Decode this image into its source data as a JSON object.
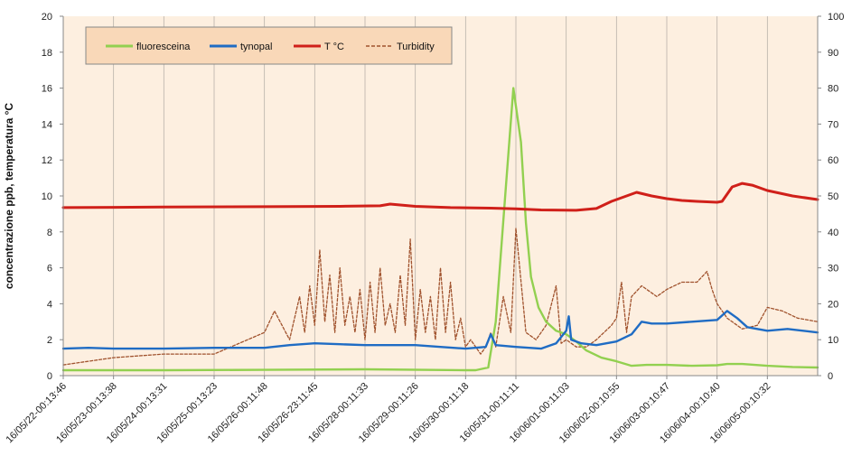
{
  "chart_data": {
    "type": "line",
    "title": "",
    "xlabel": "",
    "ylabel": "concentrazione ppb, temperatura °C",
    "y2label": "",
    "ylim": [
      0,
      20
    ],
    "y2lim": [
      0,
      100
    ],
    "xlim": [
      0,
      15
    ],
    "yticks": [
      0,
      2,
      4,
      6,
      8,
      10,
      12,
      14,
      16,
      18,
      20
    ],
    "y2ticks": [
      0,
      10,
      20,
      30,
      40,
      50,
      60,
      70,
      80,
      90,
      100
    ],
    "grid": "vertical",
    "legend_position": "top-left",
    "categories": [
      "16/05/22-00:13:46",
      "16/05/23-00:13:38",
      "16/05/24-00:13:31",
      "16/05/25-00:13:23",
      "16/05/26-00:11:48",
      "16/05/26-23:11:45",
      "16/05/28-00:11:33",
      "16/05/29-00:11:26",
      "16/05/30-00:11:18",
      "16/05/31-00:11:11",
      "16/06/01-00:11:03",
      "16/06/02-00:10:55",
      "16/06/03-00:10:47",
      "16/06/04-00:10:40",
      "16/06/05-00:10:32"
    ],
    "series": [
      {
        "name": "fluoresceina",
        "axis": "left",
        "color": "#92D050",
        "style": "solid",
        "x": [
          0,
          2,
          4,
          6,
          8,
          8.2,
          8.45,
          8.6,
          8.8,
          8.95,
          9.1,
          9.2,
          9.3,
          9.45,
          9.6,
          9.8,
          10.0,
          10.2,
          10.4,
          10.7,
          11.0,
          11.3,
          11.6,
          12.0,
          12.5,
          13.0,
          13.2,
          13.5,
          14.0,
          14.5,
          15.0
        ],
        "values": [
          0.3,
          0.3,
          0.32,
          0.35,
          0.3,
          0.3,
          0.45,
          3.0,
          10.5,
          16.0,
          13.0,
          8.5,
          5.5,
          3.8,
          3.0,
          2.5,
          2.3,
          1.9,
          1.4,
          1.0,
          0.8,
          0.55,
          0.6,
          0.6,
          0.55,
          0.58,
          0.65,
          0.65,
          0.55,
          0.48,
          0.45
        ]
      },
      {
        "name": "tynopal",
        "axis": "left",
        "color": "#1F6CC4",
        "style": "solid",
        "x": [
          0,
          0.5,
          1,
          2,
          3,
          4,
          4.5,
          5,
          5.5,
          6,
          7,
          7.5,
          8,
          8.4,
          8.5,
          8.6,
          9,
          9.5,
          9.8,
          10.0,
          10.05,
          10.1,
          10.3,
          10.6,
          11,
          11.3,
          11.5,
          11.7,
          12,
          12.5,
          13.0,
          13.2,
          13.4,
          13.6,
          14.0,
          14.4,
          15.0
        ],
        "values": [
          1.5,
          1.55,
          1.5,
          1.5,
          1.55,
          1.55,
          1.7,
          1.8,
          1.75,
          1.7,
          1.7,
          1.6,
          1.5,
          1.6,
          2.3,
          1.7,
          1.6,
          1.5,
          1.8,
          2.5,
          3.3,
          2.0,
          1.8,
          1.7,
          1.9,
          2.3,
          3.0,
          2.9,
          2.9,
          3.0,
          3.1,
          3.6,
          3.2,
          2.7,
          2.5,
          2.6,
          2.4
        ]
      },
      {
        "name": "T °C",
        "axis": "left",
        "color": "#D0201A",
        "style": "solid",
        "x": [
          0,
          2,
          4,
          5.5,
          6.3,
          6.5,
          7,
          7.7,
          8.5,
          9,
          9.5,
          10.2,
          10.6,
          10.9,
          11.2,
          11.4,
          11.7,
          12.0,
          12.3,
          12.6,
          13.0,
          13.1,
          13.3,
          13.5,
          13.7,
          14.0,
          14.5,
          15.0
        ],
        "values": [
          9.35,
          9.38,
          9.4,
          9.42,
          9.45,
          9.55,
          9.42,
          9.35,
          9.32,
          9.28,
          9.22,
          9.2,
          9.3,
          9.7,
          10.0,
          10.2,
          10.0,
          9.85,
          9.75,
          9.7,
          9.65,
          9.7,
          10.5,
          10.7,
          10.6,
          10.3,
          10.0,
          9.8
        ]
      },
      {
        "name": "Turbidity",
        "axis": "right",
        "color": "#A0522D",
        "style": "dashed",
        "x": [
          0,
          1,
          2,
          3,
          3.5,
          4,
          4.2,
          4.5,
          4.7,
          4.8,
          4.9,
          5.0,
          5.1,
          5.2,
          5.3,
          5.4,
          5.5,
          5.6,
          5.7,
          5.8,
          5.9,
          6.0,
          6.1,
          6.2,
          6.3,
          6.4,
          6.5,
          6.6,
          6.7,
          6.8,
          6.9,
          7.0,
          7.1,
          7.2,
          7.3,
          7.4,
          7.5,
          7.6,
          7.7,
          7.8,
          7.9,
          8.0,
          8.1,
          8.2,
          8.3,
          8.4,
          8.5,
          8.6,
          8.75,
          8.9,
          9.0,
          9.2,
          9.4,
          9.6,
          9.8,
          9.9,
          10.0,
          10.2,
          10.4,
          10.6,
          10.9,
          11.0,
          11.1,
          11.2,
          11.3,
          11.5,
          11.8,
          12.0,
          12.3,
          12.6,
          12.8,
          12.9,
          13.0,
          13.2,
          13.5,
          13.8,
          14.0,
          14.3,
          14.6,
          15.0
        ],
        "values": [
          3,
          5,
          6,
          6,
          9,
          12,
          18,
          10,
          22,
          12,
          25,
          14,
          35,
          15,
          28,
          12,
          30,
          14,
          22,
          12,
          24,
          10,
          26,
          12,
          30,
          14,
          20,
          12,
          28,
          14,
          38,
          10,
          24,
          12,
          22,
          10,
          30,
          12,
          26,
          10,
          16,
          8,
          10,
          8,
          6,
          8,
          12,
          8,
          22,
          12,
          41,
          12,
          10,
          14,
          25,
          9,
          10,
          8,
          8,
          10,
          14,
          16,
          26,
          12,
          22,
          25,
          22,
          24,
          26,
          26,
          29,
          24,
          20,
          16,
          13,
          14,
          19,
          18,
          16,
          15
        ]
      }
    ]
  }
}
